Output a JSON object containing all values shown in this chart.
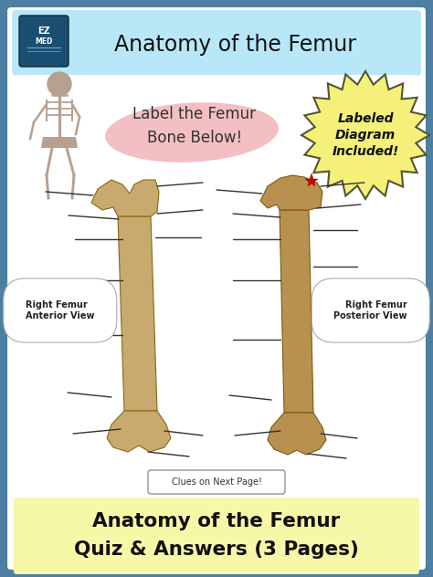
{
  "outer_bg": "#4d7fa3",
  "header_bg": "#b8e8f8",
  "header_text": "Anatomy of the Femur",
  "header_text_color": "#111111",
  "main_bg": "#ffffff",
  "footer_bg": "#f7f7a8",
  "footer_line1": "Anatomy of the Femur",
  "footer_line2": "Quiz & Answers (3 Pages)",
  "footer_text_color": "#111111",
  "label_text_color": "#222222",
  "pink_blob_color": "#f2b8bc",
  "prompt_text": "Label the Femur\nBone Below!",
  "prompt_text_color": "#333333",
  "badge_bg": "#f5f07a",
  "badge_text": "Labeled\nDiagram\nIncluded!",
  "badge_text_color": "#111111",
  "left_label": "Right Femur\nAnterior View",
  "right_label": "Right Femur\nPosterior View",
  "clue_text": "Clues on Next Page!",
  "clue_border": "#888888",
  "star_color": "#cc0000",
  "bone_color_ant": "#c8a96e",
  "bone_edge_ant": "#8b6914",
  "bone_color_post": "#b89050",
  "bone_edge_post": "#7a5c10",
  "line_color": "#333333"
}
